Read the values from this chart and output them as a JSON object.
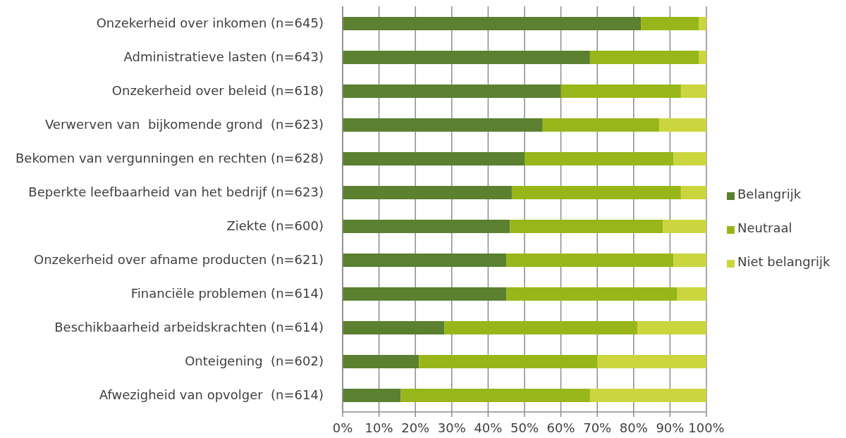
{
  "chart_data": {
    "type": "bar",
    "orientation": "horizontal",
    "stacked": true,
    "categories": [
      "Onzekerheid over inkomen (n=645)",
      "Administratieve lasten (n=643)",
      "Onzekerheid over beleid (n=618)",
      "Verwerven van  bijkomende grond  (n=623)",
      "Bekomen van vergunningen en rechten (n=628)",
      "Beperkte leefbaarheid van het bedrijf (n=623)",
      "Ziekte (n=600)",
      "Onzekerheid over afname producten (n=621)",
      "Financiële problemen (n=614)",
      "Beschikbaarheid arbeidskrachten (n=614)",
      "Onteigening  (n=602)",
      "Afwezigheid van opvolger  (n=614)"
    ],
    "series": [
      {
        "name": "Belangrijk",
        "color": "#5a8030",
        "values": [
          82,
          68,
          60,
          55,
          50,
          46.5,
          46,
          45,
          45,
          28,
          21,
          16
        ]
      },
      {
        "name": "Neutraal",
        "color": "#98b61a",
        "values": [
          16,
          30,
          33,
          32,
          41,
          46.5,
          42,
          46,
          47,
          53,
          49,
          52
        ]
      },
      {
        "name": "Niet belangrijk",
        "color": "#cbd63f",
        "values": [
          2,
          2,
          7,
          13,
          9,
          7,
          12,
          9,
          8,
          19,
          30,
          32
        ]
      }
    ],
    "xlim": [
      0,
      100
    ],
    "xticks": [
      {
        "value": 0,
        "label": "0%"
      },
      {
        "value": 10,
        "label": "10%"
      },
      {
        "value": 20,
        "label": "20%"
      },
      {
        "value": 30,
        "label": "30%"
      },
      {
        "value": 40,
        "label": "40%"
      },
      {
        "value": 50,
        "label": "50%"
      },
      {
        "value": 60,
        "label": "60%"
      },
      {
        "value": 70,
        "label": "70%"
      },
      {
        "value": 80,
        "label": "80%"
      },
      {
        "value": 90,
        "label": "90%"
      },
      {
        "value": 100,
        "label": "100%"
      }
    ],
    "grid": "x",
    "legend": "right"
  }
}
